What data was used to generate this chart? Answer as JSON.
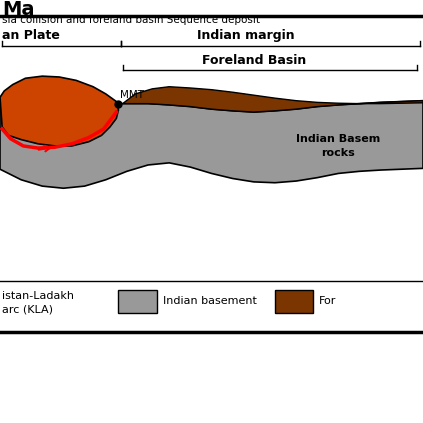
{
  "title_line1": "Ma",
  "title_line2": "sia collision and foreland basin Sequence deposit",
  "label_asian_plate": "an Plate",
  "label_indian_margin": "Indian margin",
  "label_foreland_basin": "Foreland Basin",
  "label_MMT": "MMT",
  "label_indian_basement_rocks": "Indian Basem\nrocks",
  "color_background": "#ffffff",
  "color_gray_basement": "#999999",
  "color_brown_foreland": "#7a3500",
  "color_orange_arc": "#cc4400",
  "color_red_line": "#ff0000",
  "color_black": "#000000",
  "legend_items": [
    {
      "label": "Indian basement",
      "color": "#999999"
    },
    {
      "label": "For",
      "color": "#7a3500"
    }
  ],
  "legend_label_kla": "istan-Ladakh\narc (KLA)"
}
